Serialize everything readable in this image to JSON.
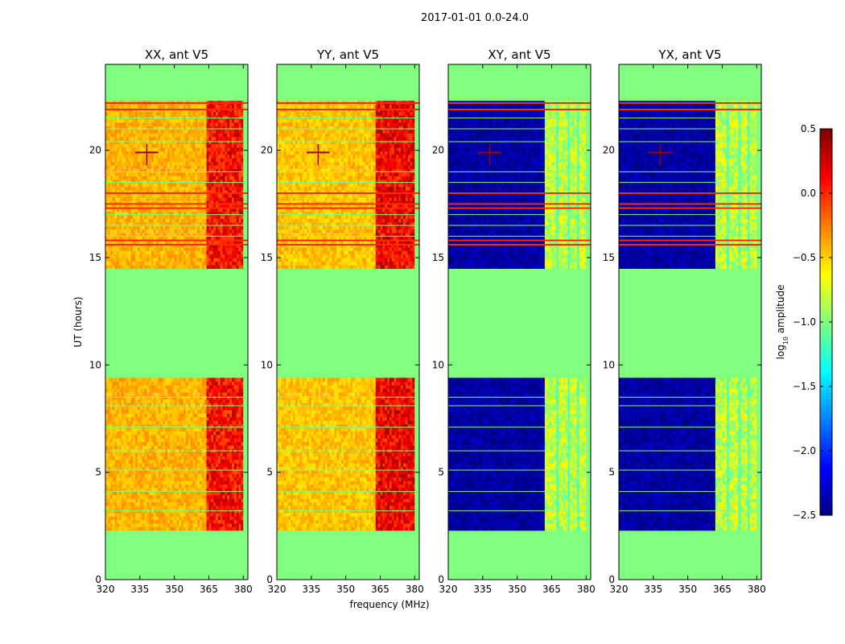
{
  "chart_data": {
    "type": "heatmap",
    "suptitle": "2017-01-01 0.0-24.0",
    "xlabel": "frequency (MHz)",
    "ylabel": "UT (hours)",
    "xlim": [
      320,
      382
    ],
    "ylim": [
      0,
      24
    ],
    "xticks": [
      "320",
      "335",
      "350",
      "365",
      "380"
    ],
    "yticks": [
      "0",
      "5",
      "10",
      "15",
      "20"
    ],
    "colorbar": {
      "label_prefix": "log",
      "label_sub": "10",
      "label_suffix": " amplitude",
      "range": [
        -2.5,
        0.5
      ],
      "ticks": [
        "0.5",
        "0.0",
        "−0.5",
        "−1.0",
        "−1.5",
        "−2.0",
        "−2.5"
      ],
      "colormap": "jet",
      "fill_value": -1.0
    },
    "data_bands_ut": [
      [
        2.3,
        9.4
      ],
      [
        14.5,
        22.3
      ]
    ],
    "strong_flag_rows_ut": [
      15.6,
      15.8,
      17.3,
      17.5,
      18.0,
      21.9,
      22.2
    ],
    "panels": [
      {
        "title": "XX, ant V5",
        "pol": "XX",
        "base_level": -0.4,
        "hot_band_mhz": [
          364,
          381
        ],
        "hot_level": 0.1
      },
      {
        "title": "YY, ant V5",
        "pol": "YY",
        "base_level": -0.45,
        "hot_band_mhz": [
          363,
          381
        ],
        "hot_level": 0.15
      },
      {
        "title": "XY, ant V5",
        "pol": "XY",
        "base_level": -2.4,
        "hot_band_mhz": [
          362,
          379
        ],
        "hot_level": -0.8
      },
      {
        "title": "YX, ant V5",
        "pol": "YX",
        "base_level": -2.4,
        "hot_band_mhz": [
          362,
          379
        ],
        "hot_level": -0.8
      }
    ]
  }
}
